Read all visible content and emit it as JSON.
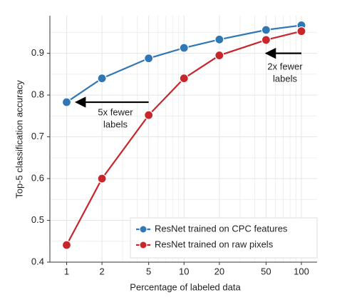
{
  "chart_data": {
    "type": "line",
    "x_label": "Percentage of labeled data",
    "y_label": "Top-5 classification accuracy",
    "x": [
      1,
      2,
      5,
      10,
      20,
      50,
      100
    ],
    "series": [
      {
        "name": "ResNet trained on CPC features",
        "color": "#2f77b5",
        "values": [
          0.783,
          0.84,
          0.888,
          0.913,
          0.933,
          0.956,
          0.967
        ]
      },
      {
        "name": "ResNet trained on raw pixels",
        "color": "#c9262c",
        "values": [
          0.441,
          0.6,
          0.752,
          0.84,
          0.895,
          0.932,
          0.953
        ]
      }
    ],
    "x_scale": "log",
    "xlim": [
      0.72,
      136
    ],
    "ylim": [
      0.4,
      0.99
    ],
    "xticks": [
      1,
      2,
      5,
      10,
      20,
      50,
      100
    ],
    "yticks": [
      0.4,
      0.5,
      0.6,
      0.7,
      0.8,
      0.9
    ],
    "x_minor_ticks": [
      3,
      4,
      6,
      7,
      8,
      9,
      30,
      40,
      60,
      70,
      80,
      90
    ],
    "y_minor_ticks": [
      0.45,
      0.55,
      0.65,
      0.75,
      0.85,
      0.95
    ],
    "grid": true,
    "legend_position": "lower right",
    "annotations": [
      {
        "lines": [
          "5x fewer",
          "labels"
        ],
        "arrow_from": [
          5,
          0.783
        ],
        "arrow_to": [
          1.2,
          0.783
        ]
      },
      {
        "lines": [
          "2x fewer",
          "labels"
        ],
        "arrow_from": [
          100,
          0.9
        ],
        "arrow_to": [
          50,
          0.9
        ]
      }
    ]
  }
}
